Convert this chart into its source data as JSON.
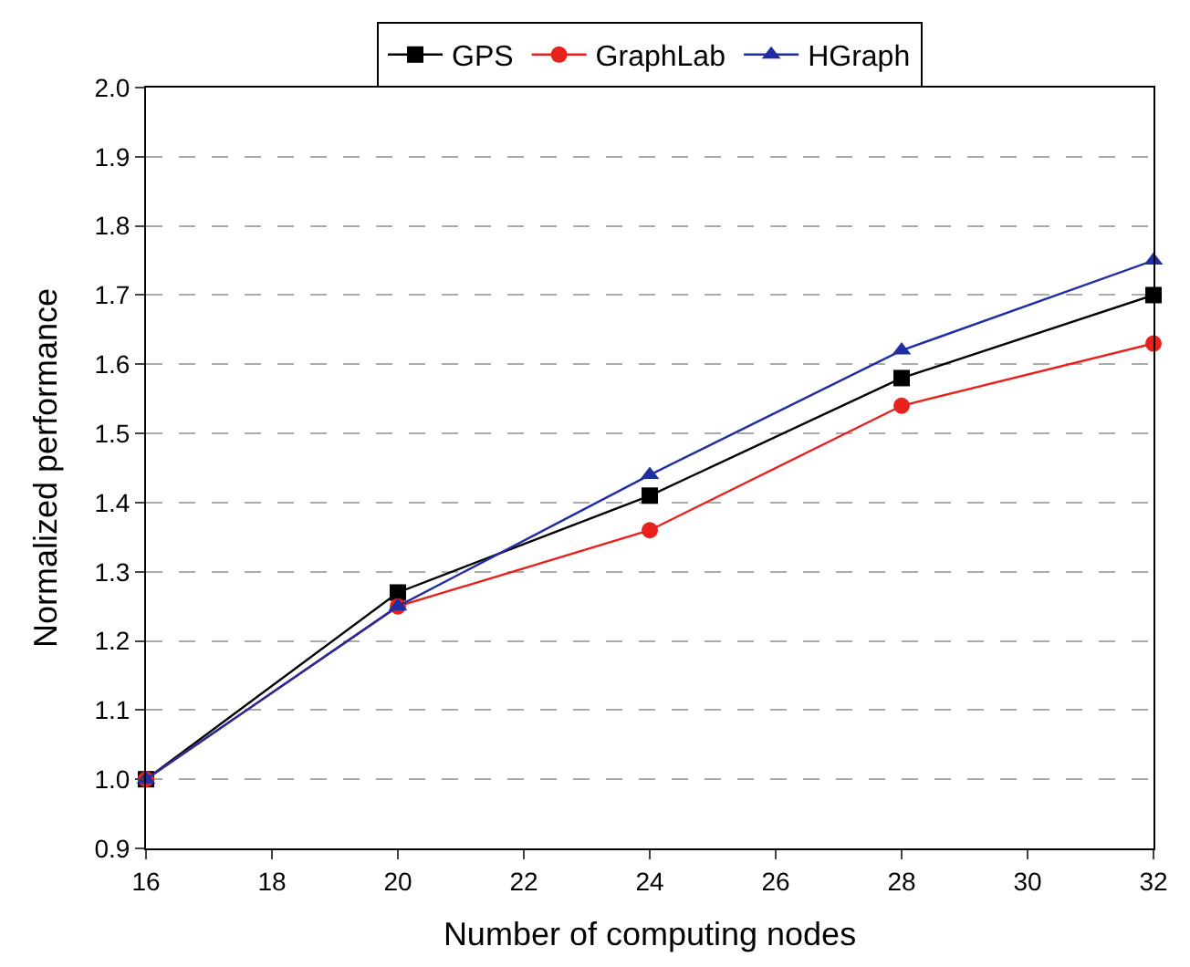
{
  "chart_data": {
    "type": "line",
    "xlabel": "Number of computing nodes",
    "ylabel": "Normalized performance",
    "x": [
      16,
      20,
      24,
      28,
      32
    ],
    "series": [
      {
        "name": "GPS",
        "color": "#000000",
        "marker": "square",
        "values": [
          1.0,
          1.27,
          1.41,
          1.58,
          1.7
        ]
      },
      {
        "name": "GraphLab",
        "color": "#e8211c",
        "marker": "circle",
        "values": [
          1.0,
          1.25,
          1.36,
          1.54,
          1.63
        ]
      },
      {
        "name": "HGraph",
        "color": "#1f2ea0",
        "marker": "triangle",
        "values": [
          1.0,
          1.25,
          1.44,
          1.62,
          1.75
        ]
      }
    ],
    "xlim": [
      16,
      32
    ],
    "xticks": [
      16,
      18,
      20,
      22,
      24,
      26,
      28,
      30,
      32
    ],
    "ylim": [
      0.9,
      2.0
    ],
    "yticks": [
      0.9,
      {
        "value": 1.0,
        "label": "1.0"
      },
      1.1,
      1.2,
      1.3,
      1.4,
      1.5,
      1.6,
      1.7,
      1.8,
      1.9,
      {
        "value": 2.0,
        "label": "2.0"
      }
    ],
    "grid": "y",
    "legend": "top",
    "line_style": "solid"
  }
}
